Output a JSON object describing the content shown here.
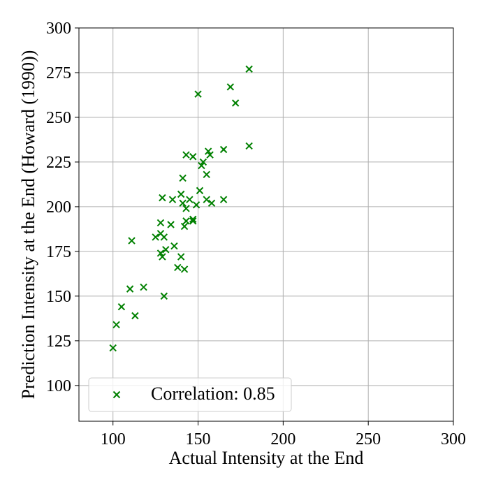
{
  "chart_data": {
    "type": "scatter",
    "xlabel": "Actual Intensity at the End",
    "ylabel": "Prediction Intensity at the End (Howard (1990))",
    "xlim": [
      80,
      300
    ],
    "ylim": [
      80,
      300
    ],
    "xticks": [
      100,
      150,
      200,
      250,
      300
    ],
    "yticks": [
      100,
      125,
      150,
      175,
      200,
      225,
      250,
      275,
      300
    ],
    "grid": true,
    "legend": {
      "placement": "lower-left",
      "label": "Correlation: 0.85"
    },
    "marker": "x",
    "color": "#008000",
    "series": [
      {
        "name": "Correlation: 0.85",
        "points": [
          [
            100,
            121
          ],
          [
            102,
            134
          ],
          [
            105,
            144
          ],
          [
            110,
            154
          ],
          [
            111,
            181
          ],
          [
            113,
            139
          ],
          [
            118,
            155
          ],
          [
            125,
            183
          ],
          [
            128,
            191
          ],
          [
            128,
            185
          ],
          [
            129,
            205
          ],
          [
            128,
            174
          ],
          [
            129,
            172
          ],
          [
            130,
            150
          ],
          [
            130,
            183
          ],
          [
            131,
            176
          ],
          [
            134,
            190
          ],
          [
            135,
            204
          ],
          [
            136,
            178
          ],
          [
            138,
            166
          ],
          [
            140,
            207
          ],
          [
            140,
            172
          ],
          [
            141,
            216
          ],
          [
            141,
            202
          ],
          [
            142,
            189
          ],
          [
            142,
            165
          ],
          [
            143,
            229
          ],
          [
            143,
            192
          ],
          [
            143,
            199
          ],
          [
            145,
            204
          ],
          [
            147,
            228
          ],
          [
            147,
            193
          ],
          [
            147,
            192
          ],
          [
            149,
            201
          ],
          [
            150,
            263
          ],
          [
            151,
            209
          ],
          [
            152,
            223
          ],
          [
            153,
            225
          ],
          [
            155,
            204
          ],
          [
            155,
            218
          ],
          [
            156,
            231
          ],
          [
            157,
            229
          ],
          [
            158,
            202
          ],
          [
            165,
            232
          ],
          [
            165,
            204
          ],
          [
            169,
            267
          ],
          [
            172,
            258
          ],
          [
            180,
            277
          ],
          [
            180,
            234
          ]
        ]
      }
    ]
  }
}
